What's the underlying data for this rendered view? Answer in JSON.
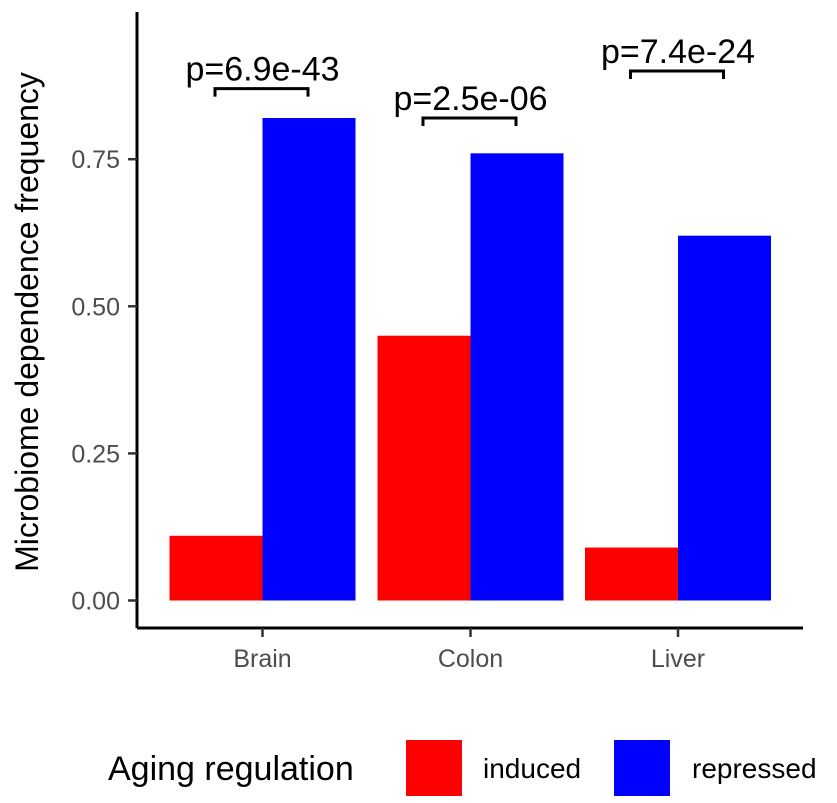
{
  "chart_data": {
    "type": "bar",
    "title": "",
    "xlabel": "",
    "ylabel": "Microbiome dependence frequency",
    "ylim": [
      0,
      0.96
    ],
    "yticks": [
      0.0,
      0.25,
      0.5,
      0.75
    ],
    "ytick_labels": [
      "0.00",
      "0.25",
      "0.50",
      "0.75"
    ],
    "categories": [
      "Brain",
      "Colon",
      "Liver"
    ],
    "series": [
      {
        "name": "induced",
        "color": "#ff0000",
        "values": [
          0.11,
          0.45,
          0.09
        ]
      },
      {
        "name": "repressed",
        "color": "#0000ff",
        "values": [
          0.82,
          0.76,
          0.62
        ]
      }
    ],
    "annotations": [
      {
        "category": "Brain",
        "label": "p=6.9e-43",
        "bracket_y": 0.87
      },
      {
        "category": "Colon",
        "label": "p=2.5e-06",
        "bracket_y": 0.82
      },
      {
        "category": "Liver",
        "label": "p=7.4e-24",
        "bracket_y": 0.9
      }
    ],
    "legend": {
      "title": "Aging regulation",
      "position": "bottom"
    },
    "grid": false
  }
}
